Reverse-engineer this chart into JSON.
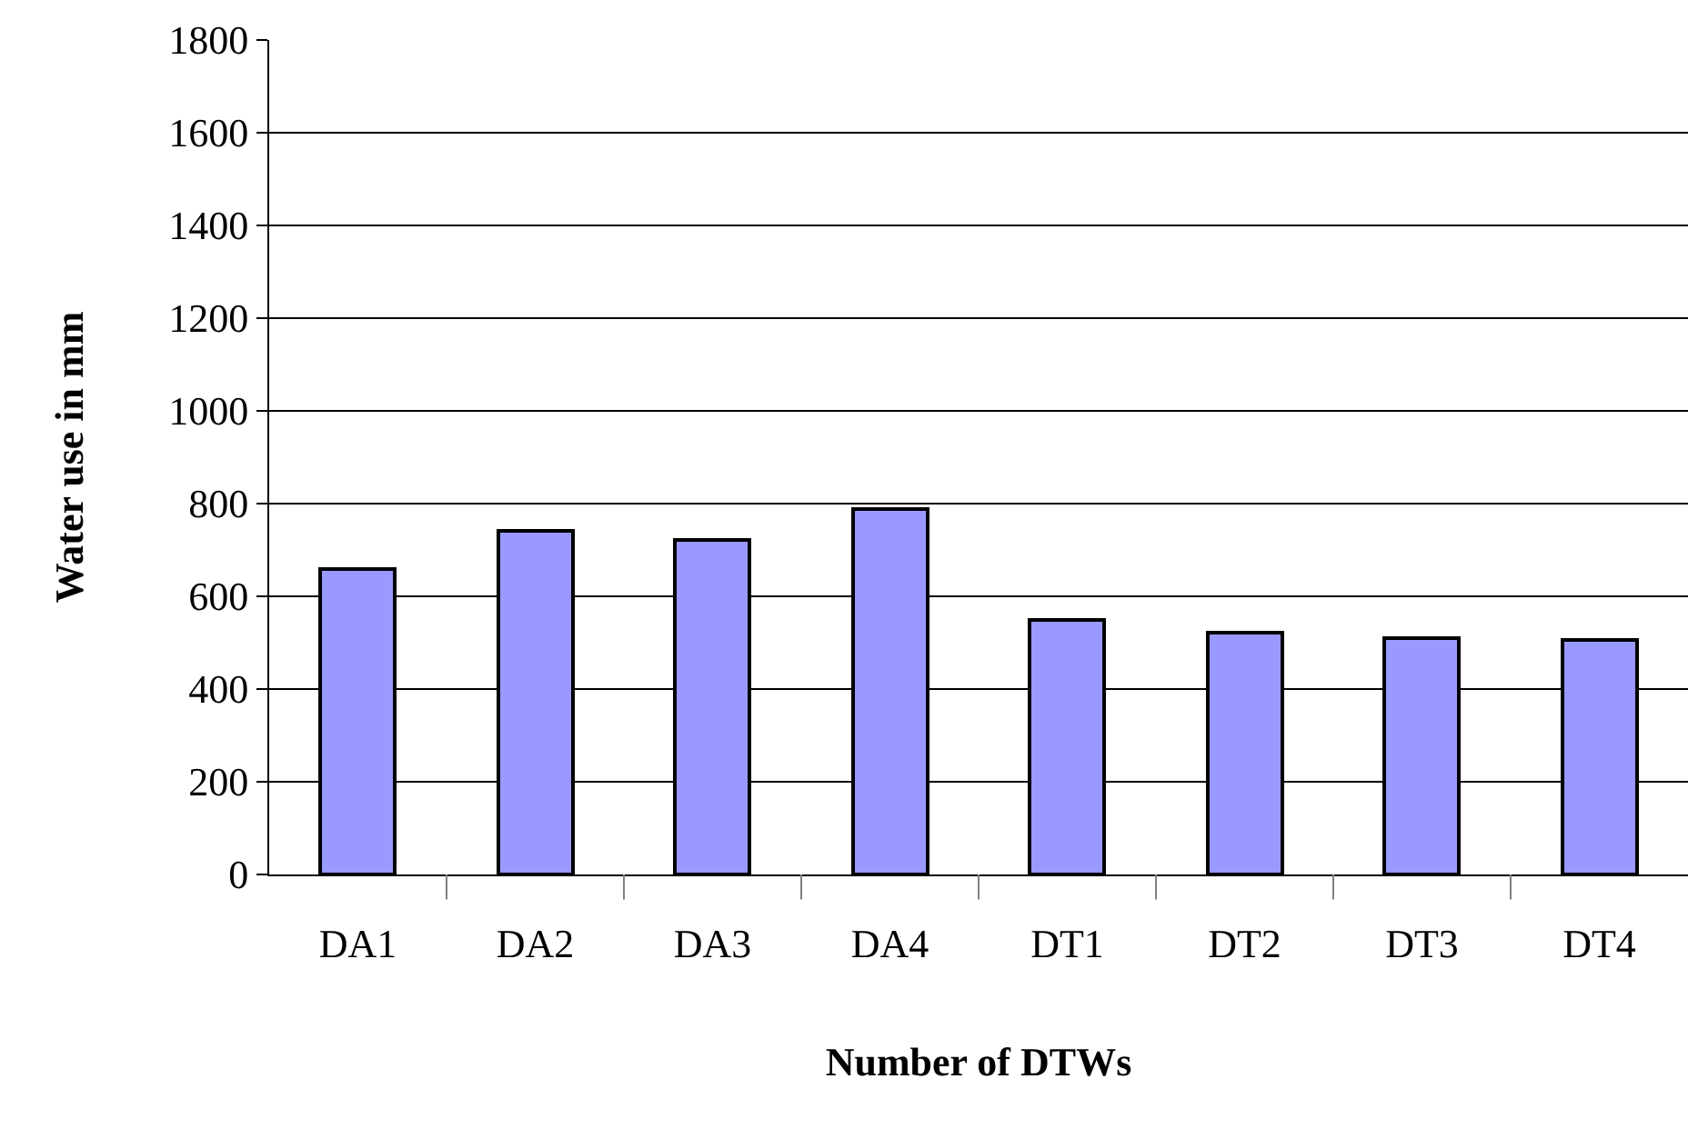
{
  "chart_data": {
    "type": "bar",
    "xlabel": "Number of DTWs",
    "ylabel": "Water use in mm",
    "categories": [
      "DA1",
      "DA2",
      "DA3",
      "DA4",
      "DT1",
      "DT2",
      "DT3",
      "DT4"
    ],
    "values": [
      660,
      740,
      720,
      790,
      550,
      520,
      510,
      505
    ],
    "color": "#9999ff",
    "ylim": [
      0,
      1800
    ],
    "yticks": [
      0,
      200,
      400,
      600,
      800,
      1000,
      1200,
      1400,
      1600,
      1800
    ],
    "grid": "y"
  }
}
